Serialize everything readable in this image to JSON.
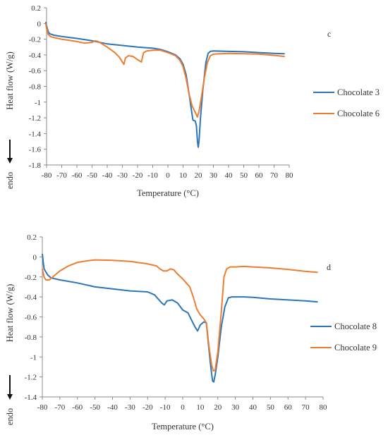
{
  "chart_data": [
    {
      "type": "line",
      "panel_label": "c",
      "title": "",
      "xlabel": "Temperature (°C)",
      "ylabel": "Heat flow (W/g)",
      "ylabel_note": "endo",
      "xlim": [
        -80,
        80
      ],
      "ylim": [
        -1.8,
        0.2
      ],
      "xticks": [
        -80,
        -70,
        -60,
        -50,
        -40,
        -30,
        -20,
        -10,
        0,
        10,
        20,
        30,
        40,
        50,
        60,
        70,
        80
      ],
      "yticks": [
        0.2,
        0,
        -0.2,
        -0.4,
        -0.6,
        -0.8,
        -1,
        -1.2,
        -1.4,
        -1.6,
        -1.8
      ],
      "grid": false,
      "legend_position": "right",
      "colors": {
        "series1": "#2e75b6",
        "series2": "#ed7d31"
      },
      "series": [
        {
          "name": "Chocolate 3",
          "points": [
            [
              -80.5,
              0.02
            ],
            [
              -80,
              -0.03
            ],
            [
              -79,
              -0.1
            ],
            [
              -78,
              -0.13
            ],
            [
              -75,
              -0.15
            ],
            [
              -70,
              -0.165
            ],
            [
              -60,
              -0.19
            ],
            [
              -50,
              -0.22
            ],
            [
              -40,
              -0.26
            ],
            [
              -30,
              -0.28
            ],
            [
              -20,
              -0.3
            ],
            [
              -10,
              -0.315
            ],
            [
              -5,
              -0.33
            ],
            [
              0,
              -0.36
            ],
            [
              5,
              -0.4
            ],
            [
              8,
              -0.45
            ],
            [
              10,
              -0.52
            ],
            [
              12,
              -0.65
            ],
            [
              14,
              -0.9
            ],
            [
              15.5,
              -1.1
            ],
            [
              16.5,
              -1.23
            ],
            [
              18,
              -1.24
            ],
            [
              18.8,
              -1.3
            ],
            [
              19.5,
              -1.5
            ],
            [
              20,
              -1.575
            ],
            [
              20.5,
              -1.5
            ],
            [
              21.5,
              -1.2
            ],
            [
              23,
              -0.85
            ],
            [
              25,
              -0.5
            ],
            [
              26.5,
              -0.38
            ],
            [
              28,
              -0.355
            ],
            [
              30,
              -0.35
            ],
            [
              40,
              -0.355
            ],
            [
              50,
              -0.36
            ],
            [
              60,
              -0.37
            ],
            [
              70,
              -0.38
            ],
            [
              77,
              -0.385
            ]
          ]
        },
        {
          "name": "Chocolate 6",
          "points": [
            [
              -80.5,
              0.0
            ],
            [
              -80,
              -0.06
            ],
            [
              -79,
              -0.14
            ],
            [
              -77,
              -0.17
            ],
            [
              -70,
              -0.2
            ],
            [
              -60,
              -0.23
            ],
            [
              -55,
              -0.25
            ],
            [
              -50,
              -0.24
            ],
            [
              -48,
              -0.22
            ],
            [
              -46,
              -0.23
            ],
            [
              -40,
              -0.3
            ],
            [
              -35,
              -0.37
            ],
            [
              -32,
              -0.43
            ],
            [
              -29,
              -0.52
            ],
            [
              -28,
              -0.44
            ],
            [
              -26,
              -0.41
            ],
            [
              -23,
              -0.42
            ],
            [
              -20,
              -0.46
            ],
            [
              -17.5,
              -0.49
            ],
            [
              -16,
              -0.37
            ],
            [
              -14,
              -0.35
            ],
            [
              -10,
              -0.34
            ],
            [
              -5,
              -0.34
            ],
            [
              0,
              -0.37
            ],
            [
              5,
              -0.41
            ],
            [
              8,
              -0.47
            ],
            [
              10,
              -0.55
            ],
            [
              12,
              -0.7
            ],
            [
              14,
              -0.9
            ],
            [
              16,
              -1.05
            ],
            [
              18,
              -1.13
            ],
            [
              19.5,
              -1.19
            ],
            [
              20.5,
              -1.12
            ],
            [
              22,
              -0.95
            ],
            [
              24,
              -0.7
            ],
            [
              26,
              -0.5
            ],
            [
              28,
              -0.41
            ],
            [
              30,
              -0.39
            ],
            [
              40,
              -0.38
            ],
            [
              50,
              -0.385
            ],
            [
              60,
              -0.39
            ],
            [
              70,
              -0.405
            ],
            [
              77,
              -0.42
            ]
          ]
        }
      ]
    },
    {
      "type": "line",
      "panel_label": "d",
      "title": "",
      "xlabel": "Temperature (°C)",
      "ylabel": "Heat flow (W/g)",
      "ylabel_note": "endo",
      "xlim": [
        -80,
        80
      ],
      "ylim": [
        -1.4,
        0.2
      ],
      "xticks": [
        -80,
        -70,
        -60,
        -50,
        -40,
        -30,
        -20,
        -10,
        0,
        10,
        20,
        30,
        40,
        50,
        60,
        70,
        80
      ],
      "yticks": [
        0.2,
        0,
        -0.2,
        -0.4,
        -0.6,
        -0.8,
        -1,
        -1.2,
        -1.4
      ],
      "grid": false,
      "legend_position": "right",
      "colors": {
        "series1": "#2e75b6",
        "series2": "#ed7d31"
      },
      "series": [
        {
          "name": "Chocolate 8",
          "points": [
            [
              -80,
              0.03
            ],
            [
              -79.5,
              -0.05
            ],
            [
              -79,
              -0.12
            ],
            [
              -77,
              -0.18
            ],
            [
              -75,
              -0.21
            ],
            [
              -70,
              -0.23
            ],
            [
              -60,
              -0.26
            ],
            [
              -50,
              -0.3
            ],
            [
              -40,
              -0.32
            ],
            [
              -30,
              -0.34
            ],
            [
              -20,
              -0.35
            ],
            [
              -16,
              -0.38
            ],
            [
              -14,
              -0.42
            ],
            [
              -12,
              -0.46
            ],
            [
              -10.5,
              -0.48
            ],
            [
              -9,
              -0.44
            ],
            [
              -6,
              -0.43
            ],
            [
              -3,
              -0.46
            ],
            [
              0,
              -0.53
            ],
            [
              3,
              -0.56
            ],
            [
              5,
              -0.63
            ],
            [
              7,
              -0.7
            ],
            [
              8.5,
              -0.74
            ],
            [
              10,
              -0.68
            ],
            [
              12,
              -0.65
            ],
            [
              13.5,
              -0.66
            ],
            [
              14.5,
              -0.85
            ],
            [
              16,
              -1.1
            ],
            [
              17,
              -1.24
            ],
            [
              17.7,
              -1.25
            ],
            [
              18.5,
              -1.18
            ],
            [
              20,
              -1.0
            ],
            [
              22,
              -0.7
            ],
            [
              24,
              -0.5
            ],
            [
              26,
              -0.41
            ],
            [
              28,
              -0.4
            ],
            [
              35,
              -0.4
            ],
            [
              40,
              -0.405
            ],
            [
              50,
              -0.42
            ],
            [
              60,
              -0.43
            ],
            [
              70,
              -0.44
            ],
            [
              77,
              -0.45
            ]
          ]
        },
        {
          "name": "Chocolate 9",
          "points": [
            [
              -80,
              -0.12
            ],
            [
              -79,
              -0.2
            ],
            [
              -78,
              -0.23
            ],
            [
              -76,
              -0.23
            ],
            [
              -74,
              -0.2
            ],
            [
              -70,
              -0.14
            ],
            [
              -65,
              -0.09
            ],
            [
              -60,
              -0.055
            ],
            [
              -55,
              -0.04
            ],
            [
              -50,
              -0.03
            ],
            [
              -40,
              -0.035
            ],
            [
              -30,
              -0.045
            ],
            [
              -20,
              -0.07
            ],
            [
              -15,
              -0.09
            ],
            [
              -13,
              -0.12
            ],
            [
              -11,
              -0.14
            ],
            [
              -9,
              -0.14
            ],
            [
              -7,
              -0.12
            ],
            [
              -5,
              -0.13
            ],
            [
              -3,
              -0.17
            ],
            [
              0,
              -0.22
            ],
            [
              2,
              -0.26
            ],
            [
              4,
              -0.3
            ],
            [
              6,
              -0.4
            ],
            [
              8,
              -0.52
            ],
            [
              10,
              -0.58
            ],
            [
              12,
              -0.62
            ],
            [
              13.5,
              -0.66
            ],
            [
              15,
              -0.9
            ],
            [
              16.5,
              -1.08
            ],
            [
              17.5,
              -1.14
            ],
            [
              18.5,
              -1.13
            ],
            [
              20,
              -0.95
            ],
            [
              22,
              -0.55
            ],
            [
              23.5,
              -0.2
            ],
            [
              25,
              -0.12
            ],
            [
              27,
              -0.1
            ],
            [
              30,
              -0.1
            ],
            [
              35,
              -0.095
            ],
            [
              40,
              -0.1
            ],
            [
              50,
              -0.11
            ],
            [
              60,
              -0.125
            ],
            [
              70,
              -0.145
            ],
            [
              77,
              -0.155
            ]
          ]
        }
      ]
    }
  ]
}
